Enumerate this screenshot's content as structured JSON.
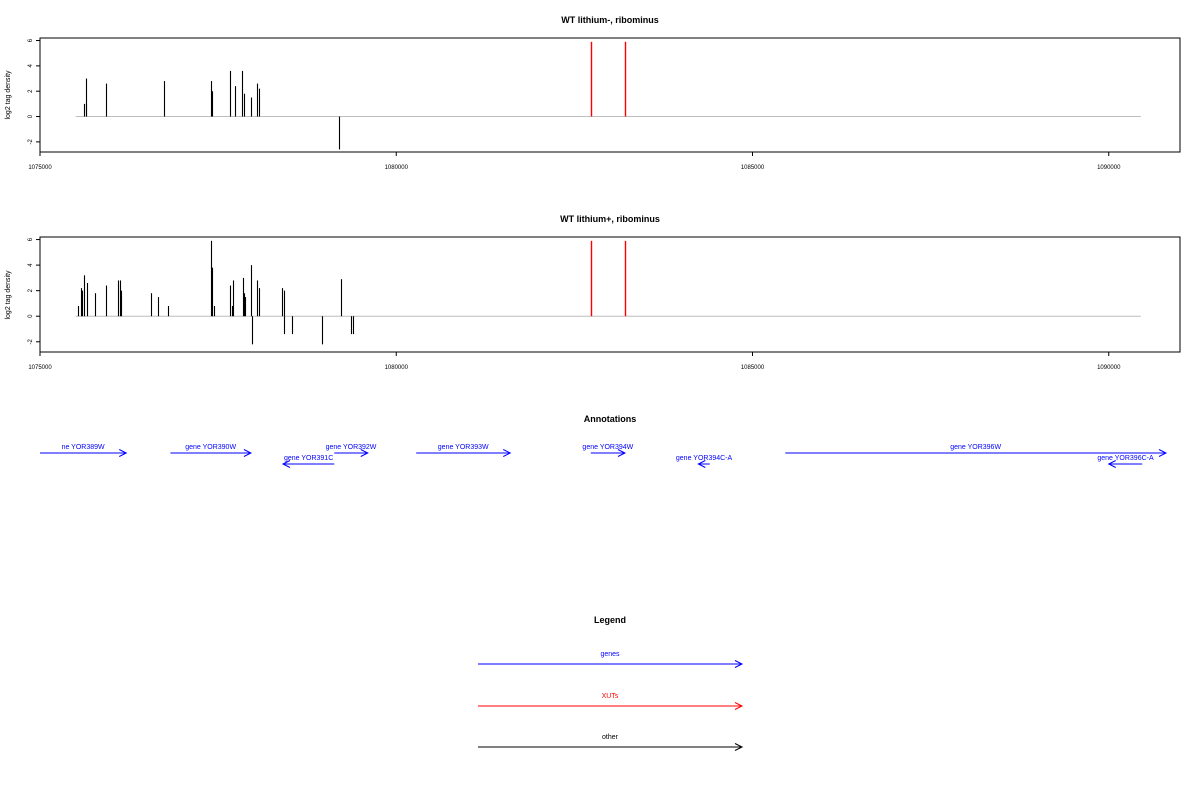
{
  "colors": {
    "genes": "#0000FF",
    "xuts": "#FF0000",
    "other": "#000000",
    "baseline": "#BEBEBE",
    "axis": "#000000"
  },
  "chart_data": [
    {
      "type": "bar",
      "title": "WT lithium-, ribominus",
      "ylabel": "log2 tag density",
      "xlim": [
        1075000,
        1091000
      ],
      "ylim": [
        -2.8,
        6.2
      ],
      "xticks": [
        1075000,
        1080000,
        1085000,
        1090000
      ],
      "xtick_labels": [
        "1075000",
        "1080000",
        "1085000",
        "1090000"
      ],
      "yticks": [
        -2,
        0,
        2,
        4,
        6
      ],
      "ytick_labels": [
        "-2",
        "0",
        "2",
        "4",
        "6"
      ],
      "baseline_range": [
        1075500,
        1090450
      ],
      "series": [
        {
          "color_key": "other",
          "x": [
            1075620,
            1075640,
            1075650,
            1075920,
            1076740,
            1077400,
            1077420,
            1077670,
            1077730,
            1077840,
            1077860,
            1077960,
            1078050,
            1078070,
            1079190
          ],
          "values": [
            1.0,
            1.0,
            3.0,
            2.6,
            2.8,
            2.8,
            2.0,
            3.6,
            2.4,
            3.6,
            1.8,
            1.5,
            2.6,
            2.2,
            -2.6
          ]
        },
        {
          "color_key": "xuts",
          "x": [
            1082730,
            1083210
          ],
          "values": [
            5.9,
            5.9
          ]
        }
      ]
    },
    {
      "type": "bar",
      "title": "WT lithium+, ribominus",
      "ylabel": "log2 tag density",
      "xlim": [
        1075000,
        1091000
      ],
      "ylim": [
        -2.8,
        6.2
      ],
      "xticks": [
        1075000,
        1080000,
        1085000,
        1090000
      ],
      "xtick_labels": [
        "1075000",
        "1080000",
        "1085000",
        "1090000"
      ],
      "yticks": [
        -2,
        0,
        2,
        4,
        6
      ],
      "ytick_labels": [
        "-2",
        "0",
        "2",
        "4",
        "6"
      ],
      "baseline_range": [
        1075500,
        1090450
      ],
      "series": [
        {
          "color_key": "other",
          "x": [
            1075540,
            1075570,
            1075590,
            1075620,
            1075660,
            1075770,
            1075930,
            1076100,
            1076120,
            1076140,
            1076560,
            1076650,
            1076800,
            1077400,
            1077420,
            1077440,
            1077660,
            1077690,
            1077710,
            1077850,
            1077870,
            1077880,
            1077960,
            1077980,
            1078050,
            1078080,
            1078400,
            1078420,
            1078430,
            1078540,
            1078960,
            1079220,
            1079360,
            1079390
          ],
          "values": [
            0.8,
            2.2,
            2.0,
            3.2,
            2.6,
            1.8,
            2.4,
            2.8,
            2.8,
            2.0,
            1.8,
            1.5,
            0.8,
            5.9,
            3.8,
            0.8,
            2.4,
            0.8,
            2.8,
            3.0,
            1.8,
            1.5,
            4.0,
            -2.2,
            2.8,
            2.2,
            2.2,
            2.0,
            -1.4,
            -1.4,
            -2.2,
            2.9,
            -1.4,
            -1.4
          ]
        },
        {
          "color_key": "xuts",
          "x": [
            1082730,
            1083210
          ],
          "values": [
            5.9,
            5.9
          ]
        }
      ]
    }
  ],
  "annotations": {
    "title": "Annotations",
    "xlim": [
      1075000,
      1091000
    ],
    "genes": [
      {
        "label": "ne YOR389W",
        "start": 1075000,
        "end": 1076210,
        "strand": "+",
        "row": 0
      },
      {
        "label": "gene YOR390W",
        "start": 1076830,
        "end": 1077960,
        "strand": "+",
        "row": 0
      },
      {
        "label": "gene YOR391C",
        "start": 1078410,
        "end": 1079130,
        "strand": "-",
        "row": 1
      },
      {
        "label": "gene YOR392W",
        "start": 1079130,
        "end": 1079600,
        "strand": "+",
        "row": 0
      },
      {
        "label": "gene YOR393W",
        "start": 1080280,
        "end": 1081600,
        "strand": "+",
        "row": 0
      },
      {
        "label": "gene YOR394W",
        "start": 1082730,
        "end": 1083210,
        "strand": "+",
        "row": 0
      },
      {
        "label": "gene YOR394C-A",
        "start": 1084240,
        "end": 1084400,
        "strand": "-",
        "row": 1
      },
      {
        "label": "gene YOR396W",
        "start": 1085460,
        "end": 1090810,
        "strand": "+",
        "row": 0
      },
      {
        "label": "gene YOR396C-A",
        "start": 1090000,
        "end": 1090470,
        "strand": "-",
        "row": 1
      }
    ]
  },
  "legend": {
    "title": "Legend",
    "items": [
      {
        "label": "genes",
        "color_key": "genes"
      },
      {
        "label": "XUTs",
        "color_key": "xuts"
      },
      {
        "label": "other",
        "color_key": "other"
      }
    ]
  }
}
